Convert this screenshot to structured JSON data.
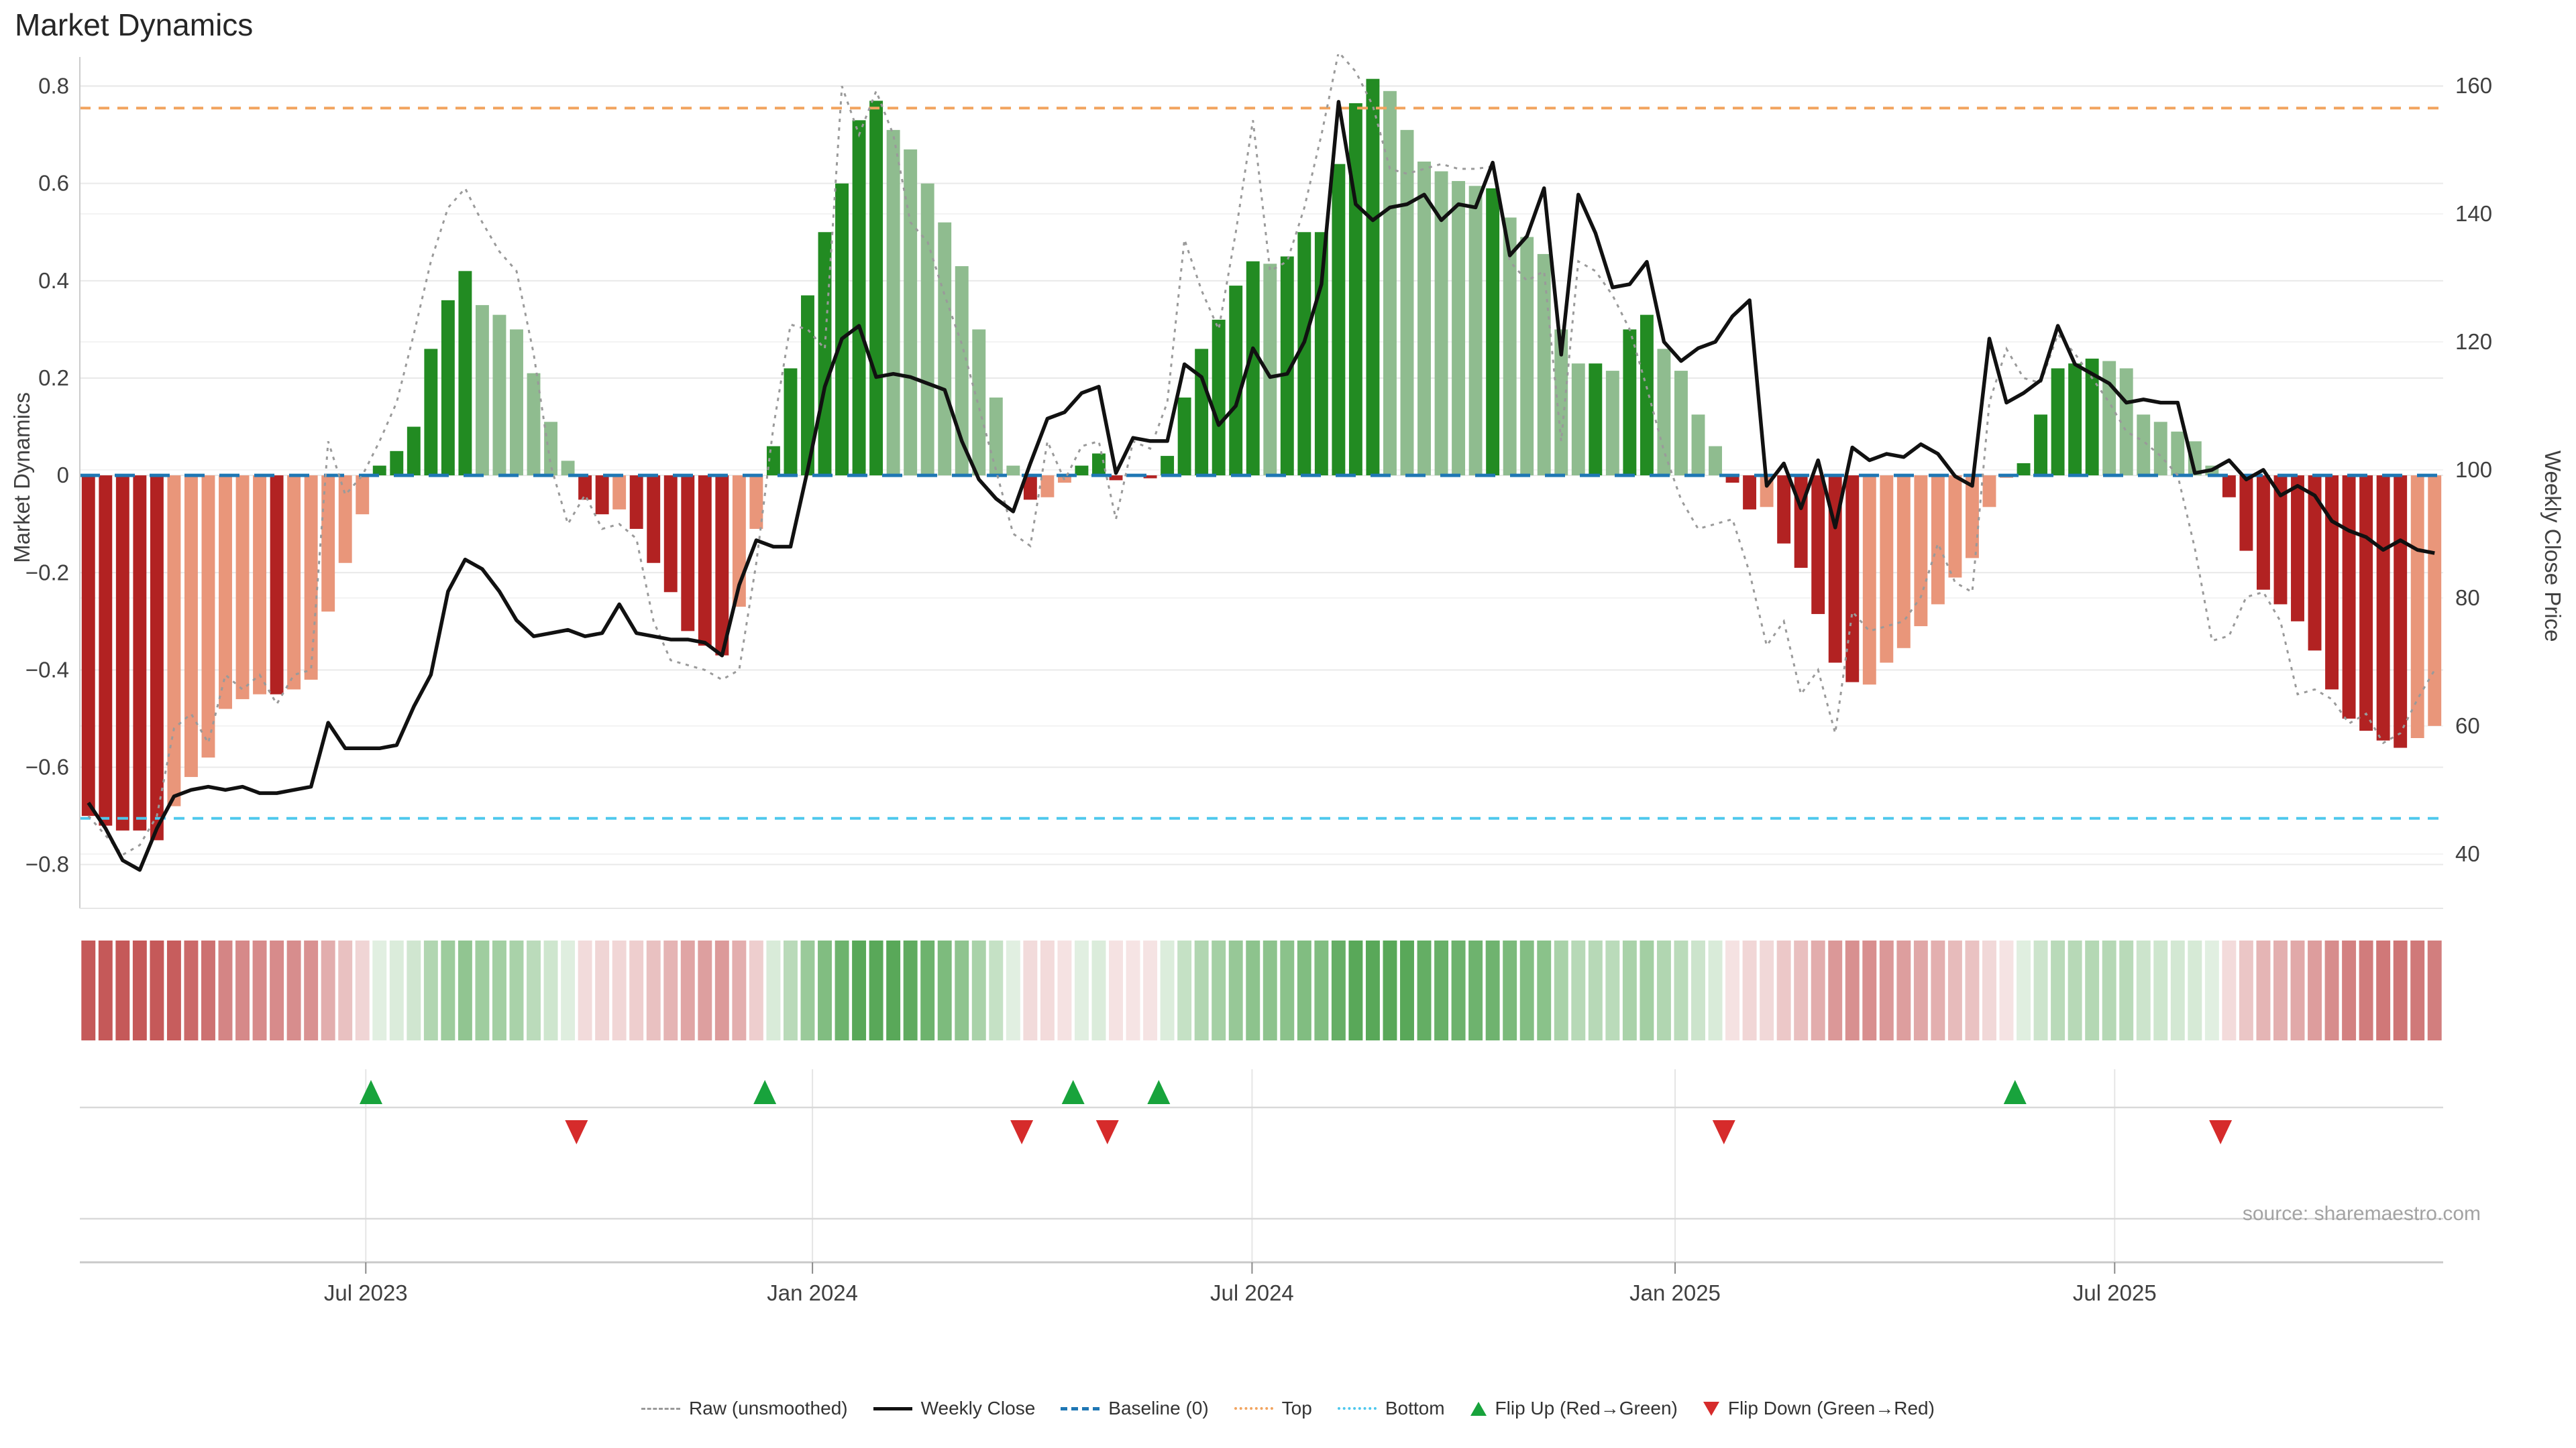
{
  "title": "Market Dynamics",
  "source": "source: sharemaestro.com",
  "axes": {
    "left_label": "Market Dynamics",
    "right_label": "Weekly Close Price"
  },
  "colors": {
    "bar_strong_red": "#b22222",
    "bar_soft_red": "#e9967a",
    "bar_strong_green": "#228b22",
    "bar_soft_green": "#8fbc8f",
    "weekly_close": "#111111",
    "raw_line": "#9a9a9a",
    "baseline": "#1f77b4",
    "top_line": "#f2a45f",
    "bottom_line": "#4ec8ed",
    "flip_up": "#18a33c",
    "flip_down": "#d62b2b",
    "grid": "#e9e9e9",
    "grid_minor": "#f3f3f3",
    "axis_text": "#404040",
    "spine": "#cccccc",
    "marker_line": "#d9d9d9",
    "axis_line": "#c9c9c9",
    "title_text": "#262626",
    "source_text": "#a3a3a3"
  },
  "legend": [
    {
      "label": "Raw (unsmoothed)",
      "glyph": "dashed-line-icon",
      "style": "dash3",
      "color": "#9a9a9a"
    },
    {
      "label": "Weekly Close",
      "glyph": "solid-line-icon",
      "style": "solid",
      "color": "#111111"
    },
    {
      "label": "Baseline (0)",
      "glyph": "dashed-line-icon",
      "style": "dash5",
      "color": "#1f77b4"
    },
    {
      "label": "Top",
      "glyph": "dotted-line-icon",
      "style": "dot",
      "color": "#f2a45f"
    },
    {
      "label": "Bottom",
      "glyph": "dotted-line-icon",
      "style": "dot",
      "color": "#4ec8ed"
    },
    {
      "label": "Flip Up (Red→Green)",
      "glyph": "triangle-up-icon",
      "style": "tri-up",
      "color": "#18a33c"
    },
    {
      "label": "Flip Down (Green→Red)",
      "glyph": "triangle-down-icon",
      "style": "tri-down",
      "color": "#d62b2b"
    }
  ],
  "chart_data": {
    "type": "combo",
    "subtype": [
      "bar",
      "line",
      "heatmap-strip",
      "event-markers"
    ],
    "title": "Market Dynamics",
    "x_unit": "week",
    "n_weeks": 138,
    "x_ticks": [
      {
        "label": "Jul 2023",
        "pos": 0.121
      },
      {
        "label": "Jan 2024",
        "pos": 0.31
      },
      {
        "label": "Jul 2024",
        "pos": 0.496
      },
      {
        "label": "Jan 2025",
        "pos": 0.675
      },
      {
        "label": "Jul 2025",
        "pos": 0.861
      }
    ],
    "left_axis": {
      "label": "Market Dynamics",
      "ticks": [
        0.8,
        0.6,
        0.4,
        0.2,
        0,
        -0.2,
        -0.4,
        -0.6,
        -0.8
      ],
      "range": [
        -0.89,
        0.86
      ]
    },
    "right_axis": {
      "label": "Weekly Close Price",
      "ticks": [
        160,
        140,
        120,
        100,
        80,
        60,
        40
      ],
      "range": [
        31.5,
        164.5
      ]
    },
    "reference_lines": {
      "baseline": 0,
      "top": 0.755,
      "bottom": -0.705
    },
    "grid": true,
    "legend_position": "bottom-center",
    "heatmap_mirrors_bars": true,
    "series": {
      "dynamics_bars": [
        -0.7,
        -0.72,
        -0.73,
        -0.73,
        -0.75,
        -0.68,
        -0.62,
        -0.58,
        -0.48,
        -0.46,
        -0.45,
        -0.45,
        -0.44,
        -0.42,
        -0.28,
        -0.18,
        -0.08,
        0.02,
        0.05,
        0.1,
        0.26,
        0.36,
        0.42,
        0.35,
        0.33,
        0.3,
        0.21,
        0.11,
        0.03,
        -0.05,
        -0.08,
        -0.07,
        -0.11,
        -0.18,
        -0.24,
        -0.32,
        -0.35,
        -0.37,
        -0.27,
        -0.11,
        0.06,
        0.22,
        0.37,
        0.5,
        0.6,
        0.73,
        0.77,
        0.71,
        0.67,
        0.6,
        0.52,
        0.43,
        0.3,
        0.16,
        0.02,
        -0.05,
        -0.045,
        -0.015,
        0.02,
        0.045,
        -0.01,
        -0.003,
        -0.006,
        0.04,
        0.16,
        0.26,
        0.32,
        0.39,
        0.44,
        0.435,
        0.45,
        0.5,
        0.5,
        0.64,
        0.765,
        0.815,
        0.79,
        0.71,
        0.645,
        0.625,
        0.605,
        0.595,
        0.59,
        0.53,
        0.49,
        0.455,
        0.3,
        0.23,
        0.23,
        0.215,
        0.3,
        0.33,
        0.26,
        0.215,
        0.125,
        0.06,
        -0.015,
        -0.07,
        -0.065,
        -0.14,
        -0.19,
        -0.285,
        -0.385,
        -0.425,
        -0.43,
        -0.385,
        -0.355,
        -0.31,
        -0.265,
        -0.21,
        -0.17,
        -0.065,
        -0.005,
        0.025,
        0.125,
        0.22,
        0.23,
        0.24,
        0.235,
        0.22,
        0.125,
        0.11,
        0.09,
        0.07,
        0.02,
        -0.045,
        -0.155,
        -0.235,
        -0.265,
        -0.3,
        -0.36,
        -0.44,
        -0.5,
        -0.525,
        -0.545,
        -0.56,
        -0.54,
        -0.515
      ],
      "bar_tone": "dddddlllllldlllllddddddllllllddldddddd",
      "bar_tone2": "llddddddd",
      "bar_tone3": "lllllllldllddddddddddd",
      "bar_tone4": "lddddddllllll",
      "bar_tone5": "dlllll",
      "bar_tone6": "dlddllllddl",
      "bar_tone7": "dddddlllllllll",
      "bar_tone8": "dddddlllllll",
      "bar_tone9": "ddddddddddd",
      "bar_tone10": "ll",
      "weekly_close": [
        48,
        44,
        39,
        37.5,
        44,
        49,
        50,
        50.5,
        50,
        50.5,
        49.5,
        49.5,
        50,
        50.5,
        60.5,
        56.5,
        56.5,
        56.5,
        57,
        63,
        68,
        81,
        86,
        84.5,
        81,
        76.5,
        74,
        74.5,
        75,
        74,
        74.5,
        79,
        74.5,
        74,
        73.5,
        73.5,
        73,
        71,
        82,
        89,
        88,
        88,
        100,
        113,
        120.5,
        122.5,
        114.5,
        115,
        114.5,
        113.5,
        112.5,
        104.5,
        98.5,
        95.5,
        93.5,
        101,
        108,
        109,
        112,
        113,
        99.5,
        105,
        104.5,
        104.5,
        116.5,
        114.5,
        107,
        110,
        119,
        114.5,
        115,
        120,
        129,
        157.5,
        141.5,
        139,
        141,
        141.5,
        143,
        139,
        141.5,
        141,
        148,
        133.5,
        136.5,
        144,
        118,
        143,
        137,
        128.5,
        129,
        132.5,
        120,
        117,
        119,
        120,
        124,
        126.5,
        97.5,
        101,
        94,
        101.5,
        91,
        103.5,
        101.5,
        102.5,
        102,
        104,
        102.5,
        99,
        97.5,
        120.5,
        110.5,
        112,
        114,
        122.5,
        116.5,
        115,
        113.5,
        110.5,
        111,
        110.5,
        110.5,
        99.5,
        100,
        101.5,
        98.5,
        100,
        96,
        97.5,
        96,
        92,
        90.5,
        89.5,
        87.5,
        89,
        87.5,
        87
      ],
      "raw_unsmoothed": [
        -0.7,
        -0.74,
        -0.78,
        -0.76,
        -0.7,
        -0.52,
        -0.49,
        -0.55,
        -0.41,
        -0.44,
        -0.41,
        -0.47,
        -0.41,
        -0.4,
        0.07,
        -0.04,
        0.0,
        0.07,
        0.15,
        0.29,
        0.44,
        0.55,
        0.59,
        0.52,
        0.46,
        0.42,
        0.25,
        0.02,
        -0.1,
        -0.04,
        -0.11,
        -0.1,
        -0.13,
        -0.3,
        -0.38,
        -0.39,
        -0.4,
        -0.42,
        -0.4,
        -0.18,
        0.1,
        0.31,
        0.3,
        0.26,
        0.8,
        0.7,
        0.79,
        0.7,
        0.52,
        0.48,
        0.37,
        0.27,
        0.14,
        0.01,
        -0.12,
        -0.145,
        0.07,
        -0.01,
        0.06,
        0.07,
        -0.09,
        0.07,
        0.055,
        0.15,
        0.485,
        0.38,
        0.3,
        0.5,
        0.73,
        0.42,
        0.44,
        0.55,
        0.7,
        0.87,
        0.83,
        0.76,
        0.63,
        0.62,
        0.63,
        0.64,
        0.63,
        0.63,
        0.635,
        0.44,
        0.4,
        0.42,
        0.07,
        0.44,
        0.42,
        0.37,
        0.3,
        0.18,
        0.05,
        -0.05,
        -0.11,
        -0.1,
        -0.09,
        -0.2,
        -0.35,
        -0.3,
        -0.45,
        -0.4,
        -0.53,
        -0.28,
        -0.32,
        -0.31,
        -0.3,
        -0.25,
        -0.14,
        -0.22,
        -0.24,
        0.15,
        0.26,
        0.2,
        0.19,
        0.29,
        0.25,
        0.2,
        0.15,
        0.09,
        0.07,
        0.04,
        0.0,
        -0.15,
        -0.34,
        -0.33,
        -0.25,
        -0.24,
        -0.3,
        -0.45,
        -0.44,
        -0.46,
        -0.51,
        -0.49,
        -0.55,
        -0.53,
        -0.46,
        -0.4
      ]
    },
    "flip_up_weeks": [
      17,
      40,
      58,
      63,
      113
    ],
    "flip_down_weeks": [
      29,
      55,
      60,
      96,
      125
    ]
  }
}
